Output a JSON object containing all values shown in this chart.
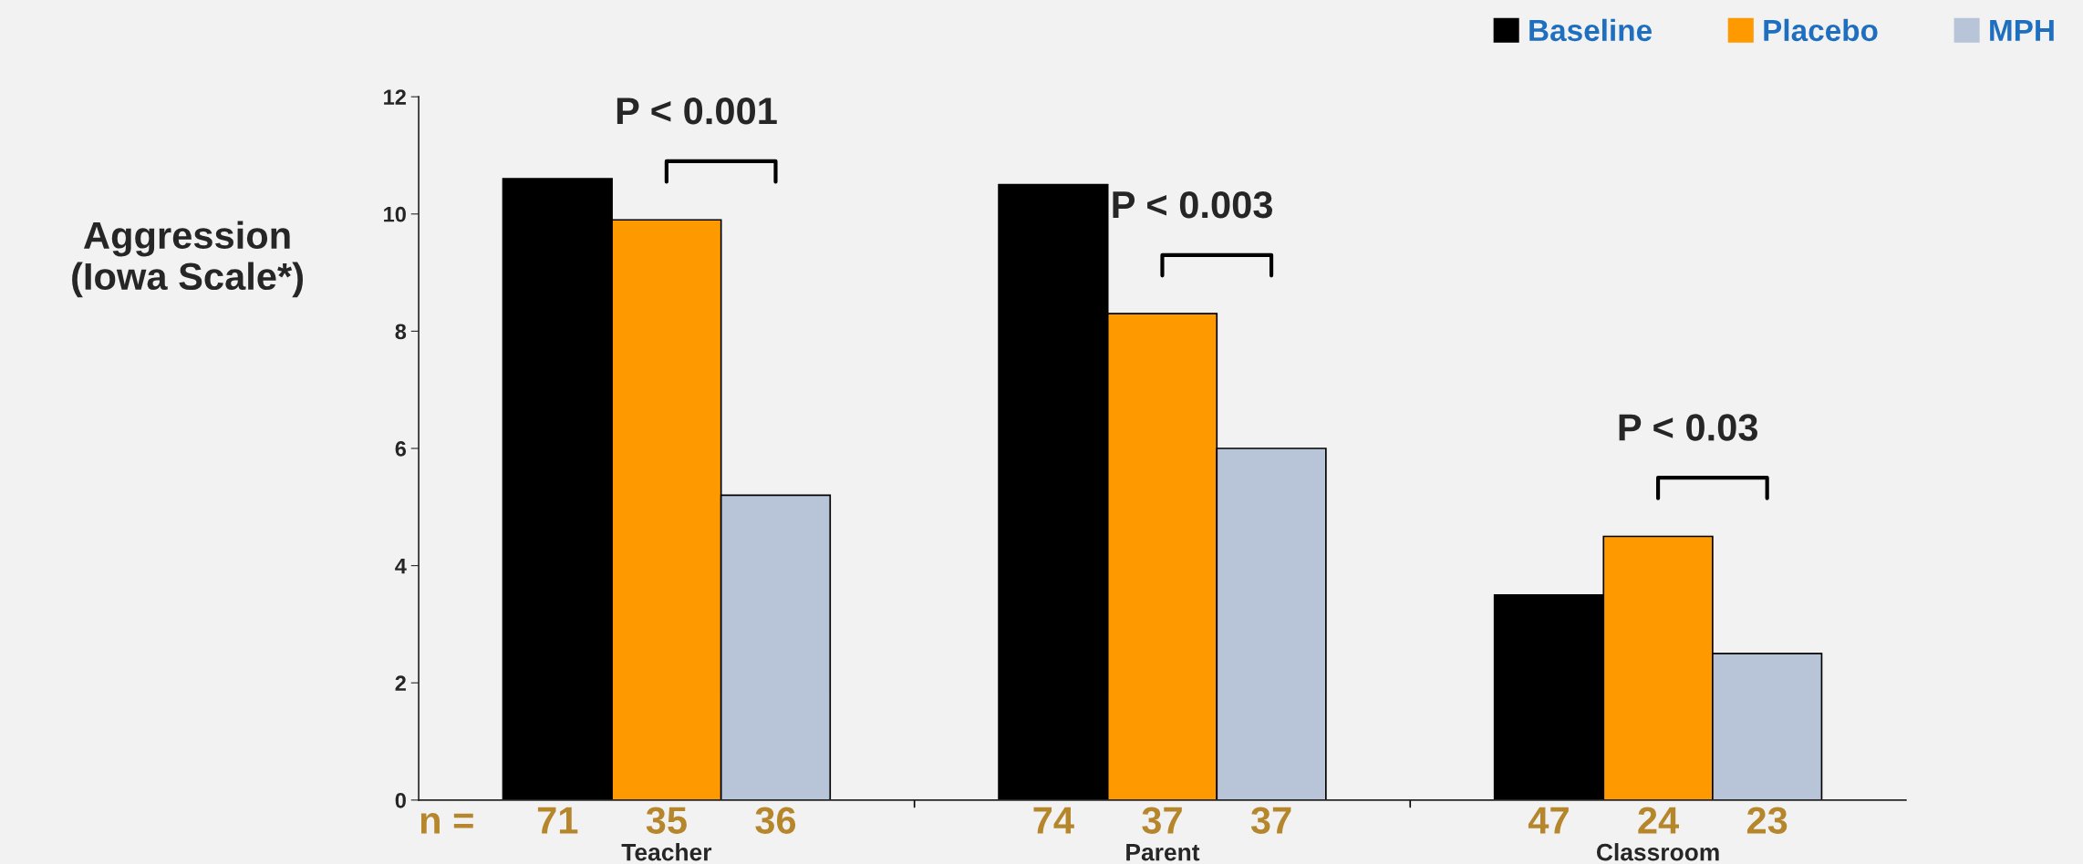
{
  "chart_data": {
    "type": "bar",
    "ylabel": "Aggression\n(Iowa Scale*)",
    "categories": [
      "Teacher",
      "Parent",
      "Classroom"
    ],
    "series": [
      {
        "name": "Baseline",
        "color": "#000000",
        "values": [
          10.6,
          10.5,
          3.5
        ]
      },
      {
        "name": "Placebo",
        "color": "#ff9900",
        "values": [
          9.9,
          8.3,
          4.5
        ]
      },
      {
        "name": "MPH",
        "color": "#b8c4d8",
        "values": [
          5.2,
          6.0,
          2.5
        ]
      }
    ],
    "ylim": [
      0,
      12
    ],
    "yticks": [
      0,
      2,
      4,
      6,
      8,
      10,
      12
    ],
    "grid": false,
    "legend": "top right",
    "annotations": [
      "P < 0.001",
      "P < 0.003",
      "P < 0.03",
      "n =",
      "71",
      "35",
      "36",
      "74",
      "37",
      "37",
      "47",
      "24",
      "23"
    ]
  }
}
